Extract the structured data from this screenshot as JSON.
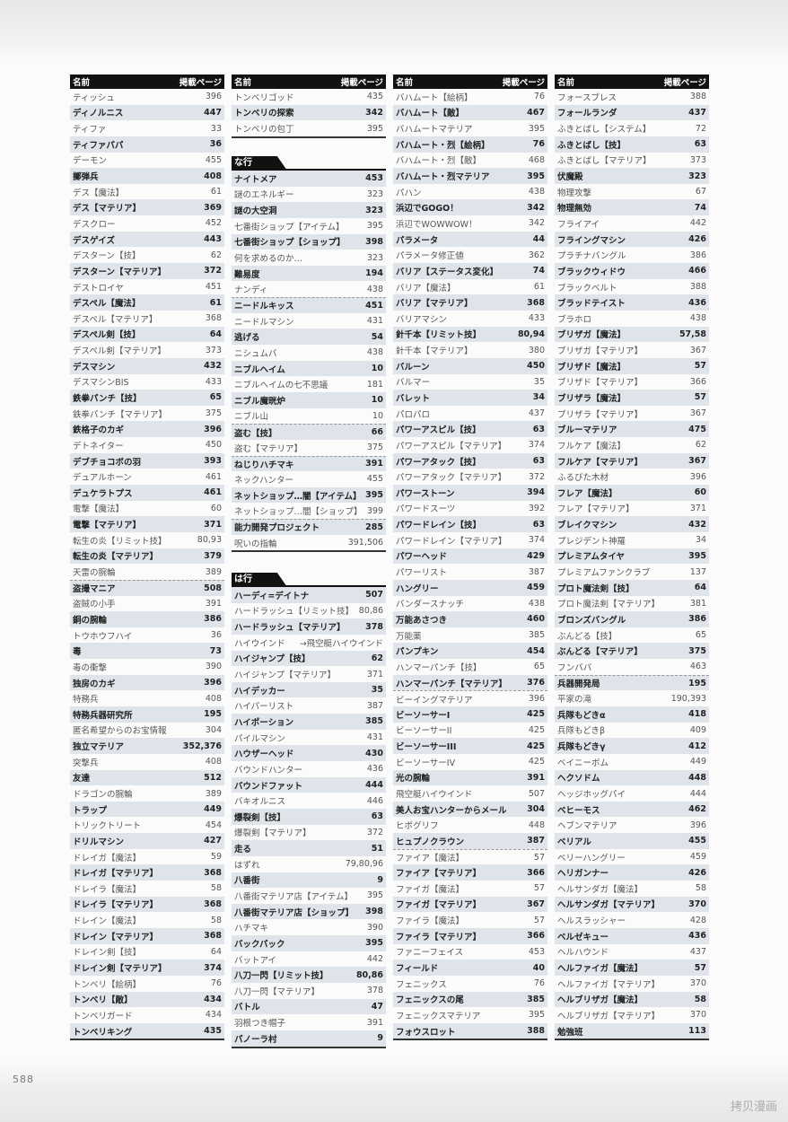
{
  "header": {
    "name": "名前",
    "page": "掲載ページ"
  },
  "columns": [
    {
      "sections": [
        {
          "title": "",
          "rows": [
            [
              "ティッシュ",
              "396"
            ],
            [
              "ディノルニス",
              "447"
            ],
            [
              "ティファ",
              "33"
            ],
            [
              "ティファパパ",
              "36"
            ],
            [
              "デーモン",
              "455"
            ],
            [
              "擲弾兵",
              "408"
            ],
            [
              "デス【魔法】",
              "61"
            ],
            [
              "デス【マテリア】",
              "369"
            ],
            [
              "デスクロー",
              "452"
            ],
            [
              "デスゲイズ",
              "443"
            ],
            [
              "デスターン【技】",
              "62"
            ],
            [
              "デスターン【マテリア】",
              "372"
            ],
            [
              "デストロイヤ",
              "451"
            ],
            [
              "デスペル【魔法】",
              "61"
            ],
            [
              "デスペル【マテリア】",
              "368"
            ],
            [
              "デスペル剣【技】",
              "64"
            ],
            [
              "デスペル剣【マテリア】",
              "373"
            ],
            [
              "デスマシン",
              "432"
            ],
            [
              "デスマシンBIS",
              "433"
            ],
            [
              "鉄拳パンチ【技】",
              "65"
            ],
            [
              "鉄拳パンチ【マテリア】",
              "375"
            ],
            [
              "鉄格子のカギ",
              "396"
            ],
            [
              "デトネイター",
              "450"
            ],
            [
              "デブチョコボの羽",
              "393"
            ],
            [
              "デュアルホーン",
              "461"
            ],
            [
              "デュケラトプス",
              "461"
            ],
            [
              "電撃【魔法】",
              "60"
            ],
            [
              "電撃【マテリア】",
              "371"
            ],
            [
              "転生の炎【リミット技】",
              "80,93"
            ],
            [
              "転生の炎【マテリア】",
              "379"
            ],
            [
              "天雷の腕輪",
              "389"
            ],
            [
              "盗撮マニア",
              "508",
              1
            ],
            [
              "盗賊の小手",
              "391"
            ],
            [
              "銅の腕輪",
              "386"
            ],
            [
              "トウホウフハイ",
              "36"
            ],
            [
              "毒",
              "73"
            ],
            [
              "毒の衝撃",
              "390"
            ],
            [
              "独房のカギ",
              "396"
            ],
            [
              "特務兵",
              "408"
            ],
            [
              "特務兵器研究所",
              "195"
            ],
            [
              "匿名希望からのお宝情報",
              "304"
            ],
            [
              "独立マテリア",
              "352,376"
            ],
            [
              "突撃兵",
              "408"
            ],
            [
              "友達",
              "512"
            ],
            [
              "ドラゴンの腕輪",
              "389"
            ],
            [
              "トラップ",
              "449"
            ],
            [
              "トリックトリート",
              "454"
            ],
            [
              "ドリルマシン",
              "427"
            ],
            [
              "ドレイガ【魔法】",
              "59"
            ],
            [
              "ドレイガ【マテリア】",
              "368"
            ],
            [
              "ドレイラ【魔法】",
              "58"
            ],
            [
              "ドレイラ【マテリア】",
              "368"
            ],
            [
              "ドレイン【魔法】",
              "58"
            ],
            [
              "ドレイン【マテリア】",
              "368"
            ],
            [
              "ドレイン剣【技】",
              "64"
            ],
            [
              "ドレイン剣【マテリア】",
              "374"
            ],
            [
              "トンベリ【絵柄】",
              "76"
            ],
            [
              "トンベリ【敵】",
              "434"
            ],
            [
              "トンベリガード",
              "434"
            ],
            [
              "トンベリキング",
              "435"
            ]
          ]
        }
      ]
    },
    {
      "sections": [
        {
          "title": "",
          "rows": [
            [
              "トンベリゴッド",
              "435"
            ],
            [
              "トンベリの探索",
              "342"
            ],
            [
              "トンベリの包丁",
              "395"
            ]
          ]
        },
        {
          "title": "な行",
          "rows": [
            [
              "ナイトメア",
              "453"
            ],
            [
              "謎のエネルギー",
              "323"
            ],
            [
              "謎の大空洞",
              "323"
            ],
            [
              "七番街ショップ【アイテム】",
              "395"
            ],
            [
              "七番街ショップ【ショップ】",
              "398"
            ],
            [
              "何を求めるのか…",
              "323"
            ],
            [
              "難易度",
              "194"
            ],
            [
              "ナンディ",
              "438"
            ],
            [
              "ニードルキッス",
              "451",
              1
            ],
            [
              "ニードルマシン",
              "431"
            ],
            [
              "逃げる",
              "54"
            ],
            [
              "ニシュムバ",
              "438"
            ],
            [
              "ニブルヘイム",
              "10"
            ],
            [
              "ニブルヘイムの七不思議",
              "181"
            ],
            [
              "ニブル魔晄炉",
              "10"
            ],
            [
              "ニブル山",
              "10"
            ],
            [
              "盗む【技】",
              "66",
              1
            ],
            [
              "盗む【マテリア】",
              "375"
            ],
            [
              "ねじりハチマキ",
              "391",
              1
            ],
            [
              "ネックハンター",
              "455"
            ],
            [
              "ネットショップ…闇【アイテム】",
              "395"
            ],
            [
              "ネットショップ…闇【ショップ】",
              "399"
            ],
            [
              "能力開発プロジェクト",
              "285",
              1
            ],
            [
              "呪いの指輪",
              "391,506"
            ]
          ]
        },
        {
          "title": "は行",
          "rows": [
            [
              "ハーディ=デイトナ",
              "507"
            ],
            [
              "ハードラッシュ【リミット技】",
              "80,86"
            ],
            [
              "ハードラッシュ【マテリア】",
              "378"
            ],
            [
              "ハイウインド",
              "→飛空艇ハイウインド"
            ],
            [
              "ハイジャンプ【技】",
              "62"
            ],
            [
              "ハイジャンプ【マテリア】",
              "371"
            ],
            [
              "ハイデッカー",
              "35"
            ],
            [
              "ハイパーリスト",
              "387"
            ],
            [
              "ハイポーション",
              "385"
            ],
            [
              "パイルマシン",
              "431"
            ],
            [
              "ハウザーヘッド",
              "430"
            ],
            [
              "バウンドハンター",
              "436"
            ],
            [
              "バウンドファット",
              "444"
            ],
            [
              "バキオルニス",
              "446"
            ],
            [
              "爆裂剣【技】",
              "63"
            ],
            [
              "爆裂剣【マテリア】",
              "372"
            ],
            [
              "走る",
              "51"
            ],
            [
              "はずれ",
              "79,80,96"
            ],
            [
              "八番街",
              "9"
            ],
            [
              "八番街マテリア店【アイテム】",
              "395"
            ],
            [
              "八番街マテリア店【ショップ】",
              "398"
            ],
            [
              "ハチマキ",
              "390"
            ],
            [
              "バックパック",
              "395"
            ],
            [
              "バットアイ",
              "442"
            ],
            [
              "八刀一閃【リミット技】",
              "80,86"
            ],
            [
              "八刀一閃【マテリア】",
              "378"
            ],
            [
              "バトル",
              "47"
            ],
            [
              "羽根つき帽子",
              "391"
            ],
            [
              "パノーラ村",
              "9"
            ]
          ]
        }
      ]
    },
    {
      "sections": [
        {
          "title": "",
          "rows": [
            [
              "バハムート【絵柄】",
              "76"
            ],
            [
              "バハムート【敵】",
              "467"
            ],
            [
              "バハムートマテリア",
              "395"
            ],
            [
              "バハムート・烈【絵柄】",
              "76"
            ],
            [
              "バハムート・烈【敵】",
              "468"
            ],
            [
              "バハムート・烈マテリア",
              "395"
            ],
            [
              "パハン",
              "438"
            ],
            [
              "浜辺でGOGO！",
              "342"
            ],
            [
              "浜辺でWOWWOW！",
              "342"
            ],
            [
              "パラメータ",
              "44"
            ],
            [
              "パラメータ修正値",
              "362"
            ],
            [
              "バリア【ステータス変化】",
              "74"
            ],
            [
              "バリア【魔法】",
              "61"
            ],
            [
              "バリア【マテリア】",
              "368"
            ],
            [
              "バリアマシン",
              "433"
            ],
            [
              "針千本【リミット技】",
              "80,94"
            ],
            [
              "針千本【マテリア】",
              "380"
            ],
            [
              "バルーン",
              "450"
            ],
            [
              "バルマー",
              "35"
            ],
            [
              "バレット",
              "34"
            ],
            [
              "パロパロ",
              "437"
            ],
            [
              "パワーアスピル【技】",
              "63"
            ],
            [
              "パワーアスピル【マテリア】",
              "374"
            ],
            [
              "パワーアタック【技】",
              "63"
            ],
            [
              "パワーアタック【マテリア】",
              "372"
            ],
            [
              "パワーストーン",
              "394"
            ],
            [
              "パワードスーツ",
              "392"
            ],
            [
              "パワードレイン【技】",
              "63"
            ],
            [
              "パワードレイン【マテリア】",
              "374"
            ],
            [
              "パワーヘッド",
              "429"
            ],
            [
              "パワーリスト",
              "387"
            ],
            [
              "ハングリー",
              "459"
            ],
            [
              "バンダースナッチ",
              "438"
            ],
            [
              "万能あさつき",
              "460"
            ],
            [
              "万能薬",
              "385"
            ],
            [
              "パンプキン",
              "454"
            ],
            [
              "ハンマーパンチ【技】",
              "65"
            ],
            [
              "ハンマーパンチ【マテリア】",
              "376"
            ],
            [
              "ビーイングマテリア",
              "396",
              1
            ],
            [
              "ビーソーサーI",
              "425"
            ],
            [
              "ビーソーサーII",
              "425"
            ],
            [
              "ビーソーサーIII",
              "425"
            ],
            [
              "ビーソーサーIV",
              "425"
            ],
            [
              "光の腕輪",
              "391"
            ],
            [
              "飛空艇ハイウインド",
              "507"
            ],
            [
              "美人お宝ハンターからメール",
              "304"
            ],
            [
              "ヒポグリフ",
              "448"
            ],
            [
              "ヒュプノクラウン",
              "387"
            ],
            [
              "ファイア【魔法】",
              "57",
              1
            ],
            [
              "ファイア【マテリア】",
              "366"
            ],
            [
              "ファイガ【魔法】",
              "57"
            ],
            [
              "ファイガ【マテリア】",
              "367"
            ],
            [
              "ファイラ【魔法】",
              "57"
            ],
            [
              "ファイラ【マテリア】",
              "366"
            ],
            [
              "ファニーフェイス",
              "453"
            ],
            [
              "フィールド",
              "40"
            ],
            [
              "フェニックス",
              "76"
            ],
            [
              "フェニックスの尾",
              "385"
            ],
            [
              "フェニックスマテリア",
              "395"
            ],
            [
              "フォウスロット",
              "388"
            ]
          ]
        }
      ]
    },
    {
      "sections": [
        {
          "title": "",
          "rows": [
            [
              "フォースブレス",
              "388"
            ],
            [
              "フォールランダ",
              "437"
            ],
            [
              "ふきとばし【システム】",
              "72"
            ],
            [
              "ふきとばし【技】",
              "63"
            ],
            [
              "ふきとばし【マテリア】",
              "373"
            ],
            [
              "伏魔殿",
              "323"
            ],
            [
              "物理攻撃",
              "67"
            ],
            [
              "物理無効",
              "74"
            ],
            [
              "フライアイ",
              "442"
            ],
            [
              "フライングマシン",
              "426"
            ],
            [
              "プラチナバングル",
              "386"
            ],
            [
              "ブラックウィドウ",
              "466"
            ],
            [
              "ブラックベルト",
              "388"
            ],
            [
              "ブラッドテイスト",
              "436"
            ],
            [
              "ブラホロ",
              "438"
            ],
            [
              "ブリザガ【魔法】",
              "57,58"
            ],
            [
              "ブリザガ【マテリア】",
              "367"
            ],
            [
              "ブリザド【魔法】",
              "57"
            ],
            [
              "ブリザド【マテリア】",
              "366"
            ],
            [
              "ブリザラ【魔法】",
              "57"
            ],
            [
              "ブリザラ【マテリア】",
              "367"
            ],
            [
              "ブルーマテリア",
              "475"
            ],
            [
              "フルケア【魔法】",
              "62"
            ],
            [
              "フルケア【マテリア】",
              "367"
            ],
            [
              "ふるびた木材",
              "396"
            ],
            [
              "フレア【魔法】",
              "60"
            ],
            [
              "フレア【マテリア】",
              "371"
            ],
            [
              "ブレイクマシン",
              "432"
            ],
            [
              "プレジデント神羅",
              "34"
            ],
            [
              "プレミアムタイヤ",
              "395"
            ],
            [
              "プレミアムファンクラブ",
              "137"
            ],
            [
              "プロト魔法剣【技】",
              "64"
            ],
            [
              "プロト魔法剣【マテリア】",
              "381"
            ],
            [
              "ブロンズバングル",
              "386"
            ],
            [
              "ぶんどる【技】",
              "65"
            ],
            [
              "ぶんどる【マテリア】",
              "375"
            ],
            [
              "フンババ",
              "463"
            ],
            [
              "兵器開発局",
              "195",
              1
            ],
            [
              "平家の滝",
              "190,393"
            ],
            [
              "兵隊もどきα",
              "418"
            ],
            [
              "兵隊もどきβ",
              "409"
            ],
            [
              "兵隊もどきγ",
              "412"
            ],
            [
              "ベイニーボム",
              "449"
            ],
            [
              "ヘクソドム",
              "448"
            ],
            [
              "ヘッジホッグパイ",
              "444"
            ],
            [
              "ベヒーモス",
              "462"
            ],
            [
              "ヘブンマテリア",
              "396"
            ],
            [
              "ベリアル",
              "455"
            ],
            [
              "ベリーハングリー",
              "459"
            ],
            [
              "ヘリガンナー",
              "426"
            ],
            [
              "ヘルサンダガ【魔法】",
              "58"
            ],
            [
              "ヘルサンダガ【マテリア】",
              "370"
            ],
            [
              "ヘルスラッシャー",
              "428"
            ],
            [
              "ベルゼキュー",
              "436"
            ],
            [
              "ヘルハウンド",
              "437"
            ],
            [
              "ヘルファイガ【魔法】",
              "57"
            ],
            [
              "ヘルファイガ【マテリア】",
              "370"
            ],
            [
              "ヘルブリザガ【魔法】",
              "58"
            ],
            [
              "ヘルブリザガ【マテリア】",
              "370"
            ],
            [
              "勉強班",
              "113"
            ]
          ]
        }
      ]
    }
  ],
  "footer": {
    "page_number": "588",
    "watermark": "拷贝漫画"
  }
}
